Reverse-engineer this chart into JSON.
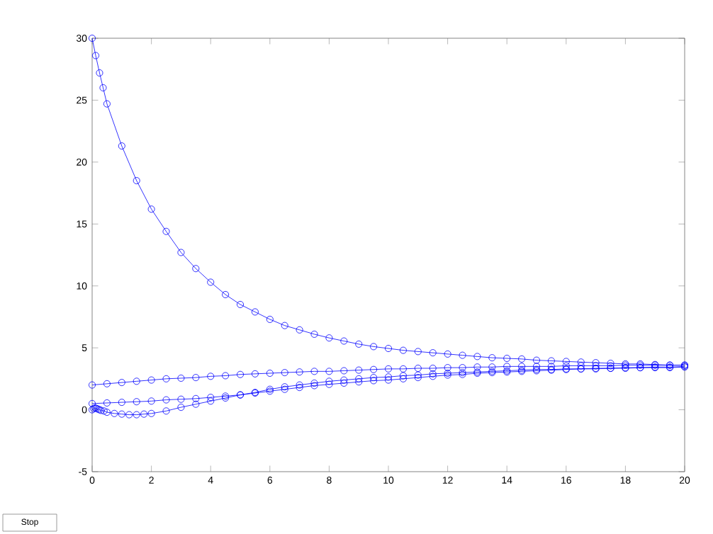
{
  "chart_data": {
    "type": "line",
    "xlim": [
      0,
      20
    ],
    "ylim": [
      -5,
      30
    ],
    "xticks": [
      0,
      2,
      4,
      6,
      8,
      10,
      12,
      14,
      16,
      18,
      20
    ],
    "yticks": [
      -5,
      0,
      5,
      10,
      15,
      20,
      25,
      30
    ],
    "grid": false,
    "marker": "circle",
    "line_style": "solid",
    "annotations": [
      "Stop"
    ],
    "series": [
      {
        "color": "#0000ff",
        "x": [
          0,
          0.12,
          0.25,
          0.37,
          0.5,
          1,
          1.5,
          2,
          2.5,
          3,
          3.5,
          4,
          4.5,
          5,
          5.5,
          6,
          6.5,
          7,
          7.5,
          8,
          8.5,
          9,
          9.5,
          10,
          10.5,
          11,
          11.5,
          12,
          12.5,
          13,
          13.5,
          14,
          14.5,
          15,
          15.5,
          16,
          16.5,
          17,
          17.5,
          18,
          18.5,
          19,
          19.5,
          20
        ],
        "values": [
          30,
          28.6,
          27.2,
          26,
          24.7,
          21.3,
          18.5,
          16.2,
          14.4,
          12.7,
          11.4,
          10.3,
          9.3,
          8.5,
          7.9,
          7.3,
          6.8,
          6.45,
          6.1,
          5.8,
          5.55,
          5.3,
          5.1,
          4.95,
          4.8,
          4.7,
          4.6,
          4.5,
          4.4,
          4.3,
          4.2,
          4.15,
          4.1,
          4.0,
          3.95,
          3.9,
          3.85,
          3.8,
          3.75,
          3.7,
          3.7,
          3.65,
          3.6,
          3.6
        ]
      },
      {
        "color": "#0000ff",
        "x": [
          0,
          0.5,
          1,
          1.5,
          2,
          2.5,
          3,
          3.5,
          4,
          4.5,
          5,
          5.5,
          6,
          6.5,
          7,
          7.5,
          8,
          8.5,
          9,
          9.5,
          10,
          10.5,
          11,
          11.5,
          12,
          12.5,
          13,
          13.5,
          14,
          14.5,
          15,
          15.5,
          16,
          16.5,
          17,
          17.5,
          18,
          18.5,
          19,
          19.5,
          20
        ],
        "values": [
          2.0,
          2.1,
          2.2,
          2.3,
          2.4,
          2.5,
          2.55,
          2.6,
          2.7,
          2.75,
          2.85,
          2.9,
          2.95,
          3.0,
          3.05,
          3.1,
          3.1,
          3.15,
          3.2,
          3.25,
          3.3,
          3.3,
          3.35,
          3.35,
          3.4,
          3.4,
          3.45,
          3.45,
          3.5,
          3.5,
          3.5,
          3.5,
          3.55,
          3.55,
          3.55,
          3.55,
          3.6,
          3.6,
          3.6,
          3.6,
          3.6
        ]
      },
      {
        "color": "#0000ff",
        "x": [
          0,
          0.5,
          1,
          1.5,
          2,
          2.5,
          3,
          3.5,
          4,
          4.5,
          5,
          5.5,
          6,
          6.5,
          7,
          7.5,
          8,
          8.5,
          9,
          9.5,
          10,
          10.5,
          11,
          11.5,
          12,
          12.5,
          13,
          13.5,
          14,
          14.5,
          15,
          15.5,
          16,
          16.5,
          17,
          17.5,
          18,
          18.5,
          19,
          19.5,
          20
        ],
        "values": [
          0.5,
          0.55,
          0.6,
          0.65,
          0.7,
          0.8,
          0.85,
          0.9,
          1.0,
          1.1,
          1.2,
          1.35,
          1.5,
          1.65,
          1.8,
          1.95,
          2.05,
          2.15,
          2.25,
          2.35,
          2.4,
          2.5,
          2.6,
          2.7,
          2.8,
          2.85,
          2.95,
          3.0,
          3.05,
          3.1,
          3.15,
          3.2,
          3.25,
          3.3,
          3.3,
          3.35,
          3.35,
          3.4,
          3.4,
          3.4,
          3.45
        ]
      },
      {
        "color": "#0000ff",
        "x": [
          0,
          0.05,
          0.1,
          0.15,
          0.2,
          0.25,
          0.3,
          0.4,
          0.5,
          0.75,
          1,
          1.25,
          1.5,
          1.75,
          2,
          2.5,
          3,
          3.5,
          4,
          4.5,
          5,
          5.5,
          6,
          6.5,
          7,
          7.5,
          8,
          8.5,
          9,
          9.5,
          10,
          10.5,
          11,
          11.5,
          12,
          12.5,
          13,
          13.5,
          14,
          14.5,
          15,
          15.5,
          16,
          16.5,
          17,
          17.5,
          18,
          18.5,
          19,
          19.5,
          20
        ],
        "values": [
          0,
          0.1,
          0.15,
          0.1,
          0.05,
          0,
          -0.05,
          -0.1,
          -0.2,
          -0.3,
          -0.35,
          -0.4,
          -0.4,
          -0.35,
          -0.3,
          -0.1,
          0.2,
          0.45,
          0.7,
          0.95,
          1.2,
          1.4,
          1.65,
          1.85,
          2.0,
          2.15,
          2.3,
          2.4,
          2.5,
          2.6,
          2.65,
          2.75,
          2.8,
          2.9,
          2.95,
          3.0,
          3.05,
          3.1,
          3.15,
          3.2,
          3.25,
          3.25,
          3.3,
          3.3,
          3.35,
          3.35,
          3.4,
          3.4,
          3.45,
          3.45,
          3.5
        ]
      }
    ]
  }
}
